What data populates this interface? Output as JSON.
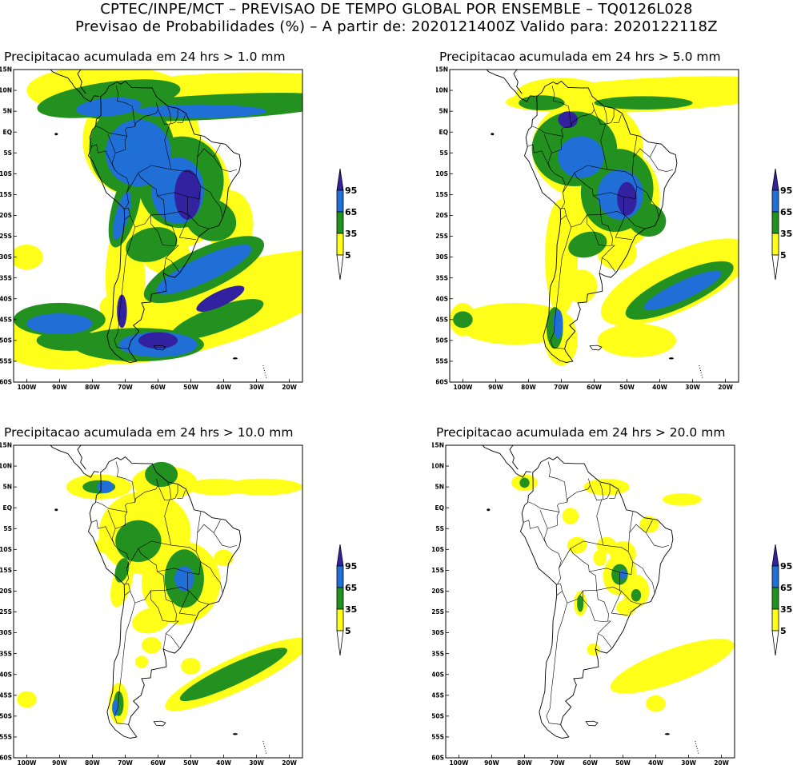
{
  "header": {
    "line1": "CPTEC/INPE/MCT – PREVISAO DE TEMPO GLOBAL POR ENSEMBLE – TQ0126L028",
    "line2": "Previsao de Probabilidades (%) –   A partir de: 2020121400Z  Valido para: 2020122118Z"
  },
  "panels": [
    {
      "title": "Precipitacao acumulada em 24 hrs > 1.0 mm"
    },
    {
      "title": "Precipitacao acumulada em 24 hrs > 5.0 mm"
    },
    {
      "title": "Precipitacao acumulada em 24 hrs > 10.0 mm"
    },
    {
      "title": "Precipitacao acumulada em 24 hrs > 20.0 mm"
    }
  ],
  "axes": {
    "lat_labels": [
      "15N",
      "10N",
      "5N",
      "EQ",
      "5S",
      "10S",
      "15S",
      "20S",
      "25S",
      "30S",
      "35S",
      "40S",
      "45S",
      "50S",
      "55S",
      "60S"
    ],
    "lon_labels": [
      "100W",
      "90W",
      "80W",
      "70W",
      "60W",
      "50W",
      "40W",
      "30W",
      "20W"
    ]
  },
  "colorbar": {
    "levels": [
      "95",
      "65",
      "35",
      "5"
    ],
    "colors": {
      "p95": "#3222a0",
      "p65": "#1f6fd6",
      "p35": "#23911f",
      "p5": "#ffff1a",
      "p0": "#ffffff"
    }
  }
}
